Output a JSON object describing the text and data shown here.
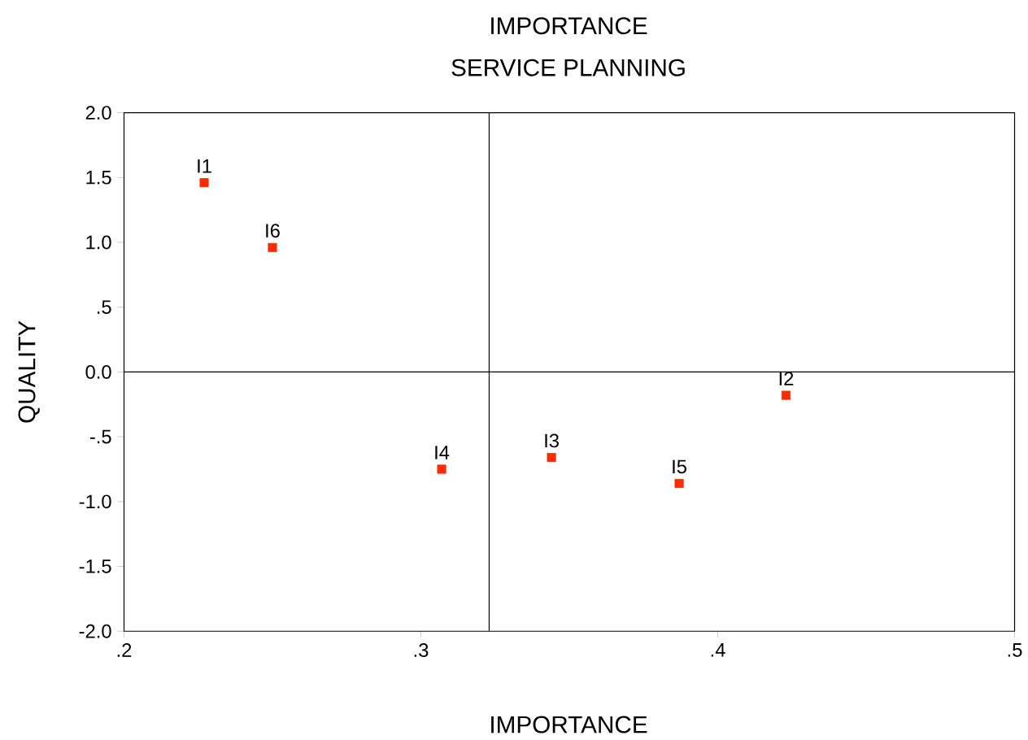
{
  "chart_data": {
    "type": "scatter",
    "title": "IMPORTANCE",
    "subtitle": "SERVICE PLANNING",
    "xlabel": "IMPORTANCE",
    "ylabel": "QUALITY",
    "x": [
      0.227,
      0.423,
      0.344,
      0.307,
      0.387,
      0.25
    ],
    "series": [
      {
        "color": "#ff2a00",
        "values": [
          1.46,
          -0.18,
          -0.66,
          -0.75,
          -0.86,
          0.96
        ]
      }
    ],
    "marker": "square",
    "grid": false,
    "xlim": [
      0.2,
      0.5
    ],
    "ylim": [
      -2.0,
      2.0
    ],
    "xticks": [
      {
        "value": 0.2,
        "label": ".2"
      },
      {
        "value": 0.3,
        "label": ".3"
      },
      {
        "value": 0.4,
        "label": ".4"
      },
      {
        "value": 0.5,
        "label": ".5"
      }
    ],
    "yticks": [
      {
        "value": -2.0,
        "label": "-2.0"
      },
      {
        "value": -1.5,
        "label": "-1.5"
      },
      {
        "value": -1.0,
        "label": "-1.0"
      },
      {
        "value": -0.5,
        "label": "-.5"
      },
      {
        "value": 0.0,
        "label": "0.0"
      },
      {
        "value": 0.5,
        "label": ".5"
      },
      {
        "value": 1.0,
        "label": "1.0"
      },
      {
        "value": 1.5,
        "label": "1.5"
      },
      {
        "value": 2.0,
        "label": "2.0"
      }
    ],
    "ref_lines": [
      {
        "axis": "x",
        "value": 0.323,
        "color": "#000000"
      },
      {
        "axis": "y",
        "value": 0.0,
        "color": "#000000"
      }
    ],
    "annotations": [
      {
        "text": "I1",
        "x": 0.227,
        "y": 1.46
      },
      {
        "text": "I2",
        "x": 0.423,
        "y": -0.18
      },
      {
        "text": "I3",
        "x": 0.344,
        "y": -0.66
      },
      {
        "text": "I4",
        "x": 0.307,
        "y": -0.75
      },
      {
        "text": "I5",
        "x": 0.387,
        "y": -0.86
      },
      {
        "text": "I6",
        "x": 0.25,
        "y": 0.96
      }
    ]
  }
}
